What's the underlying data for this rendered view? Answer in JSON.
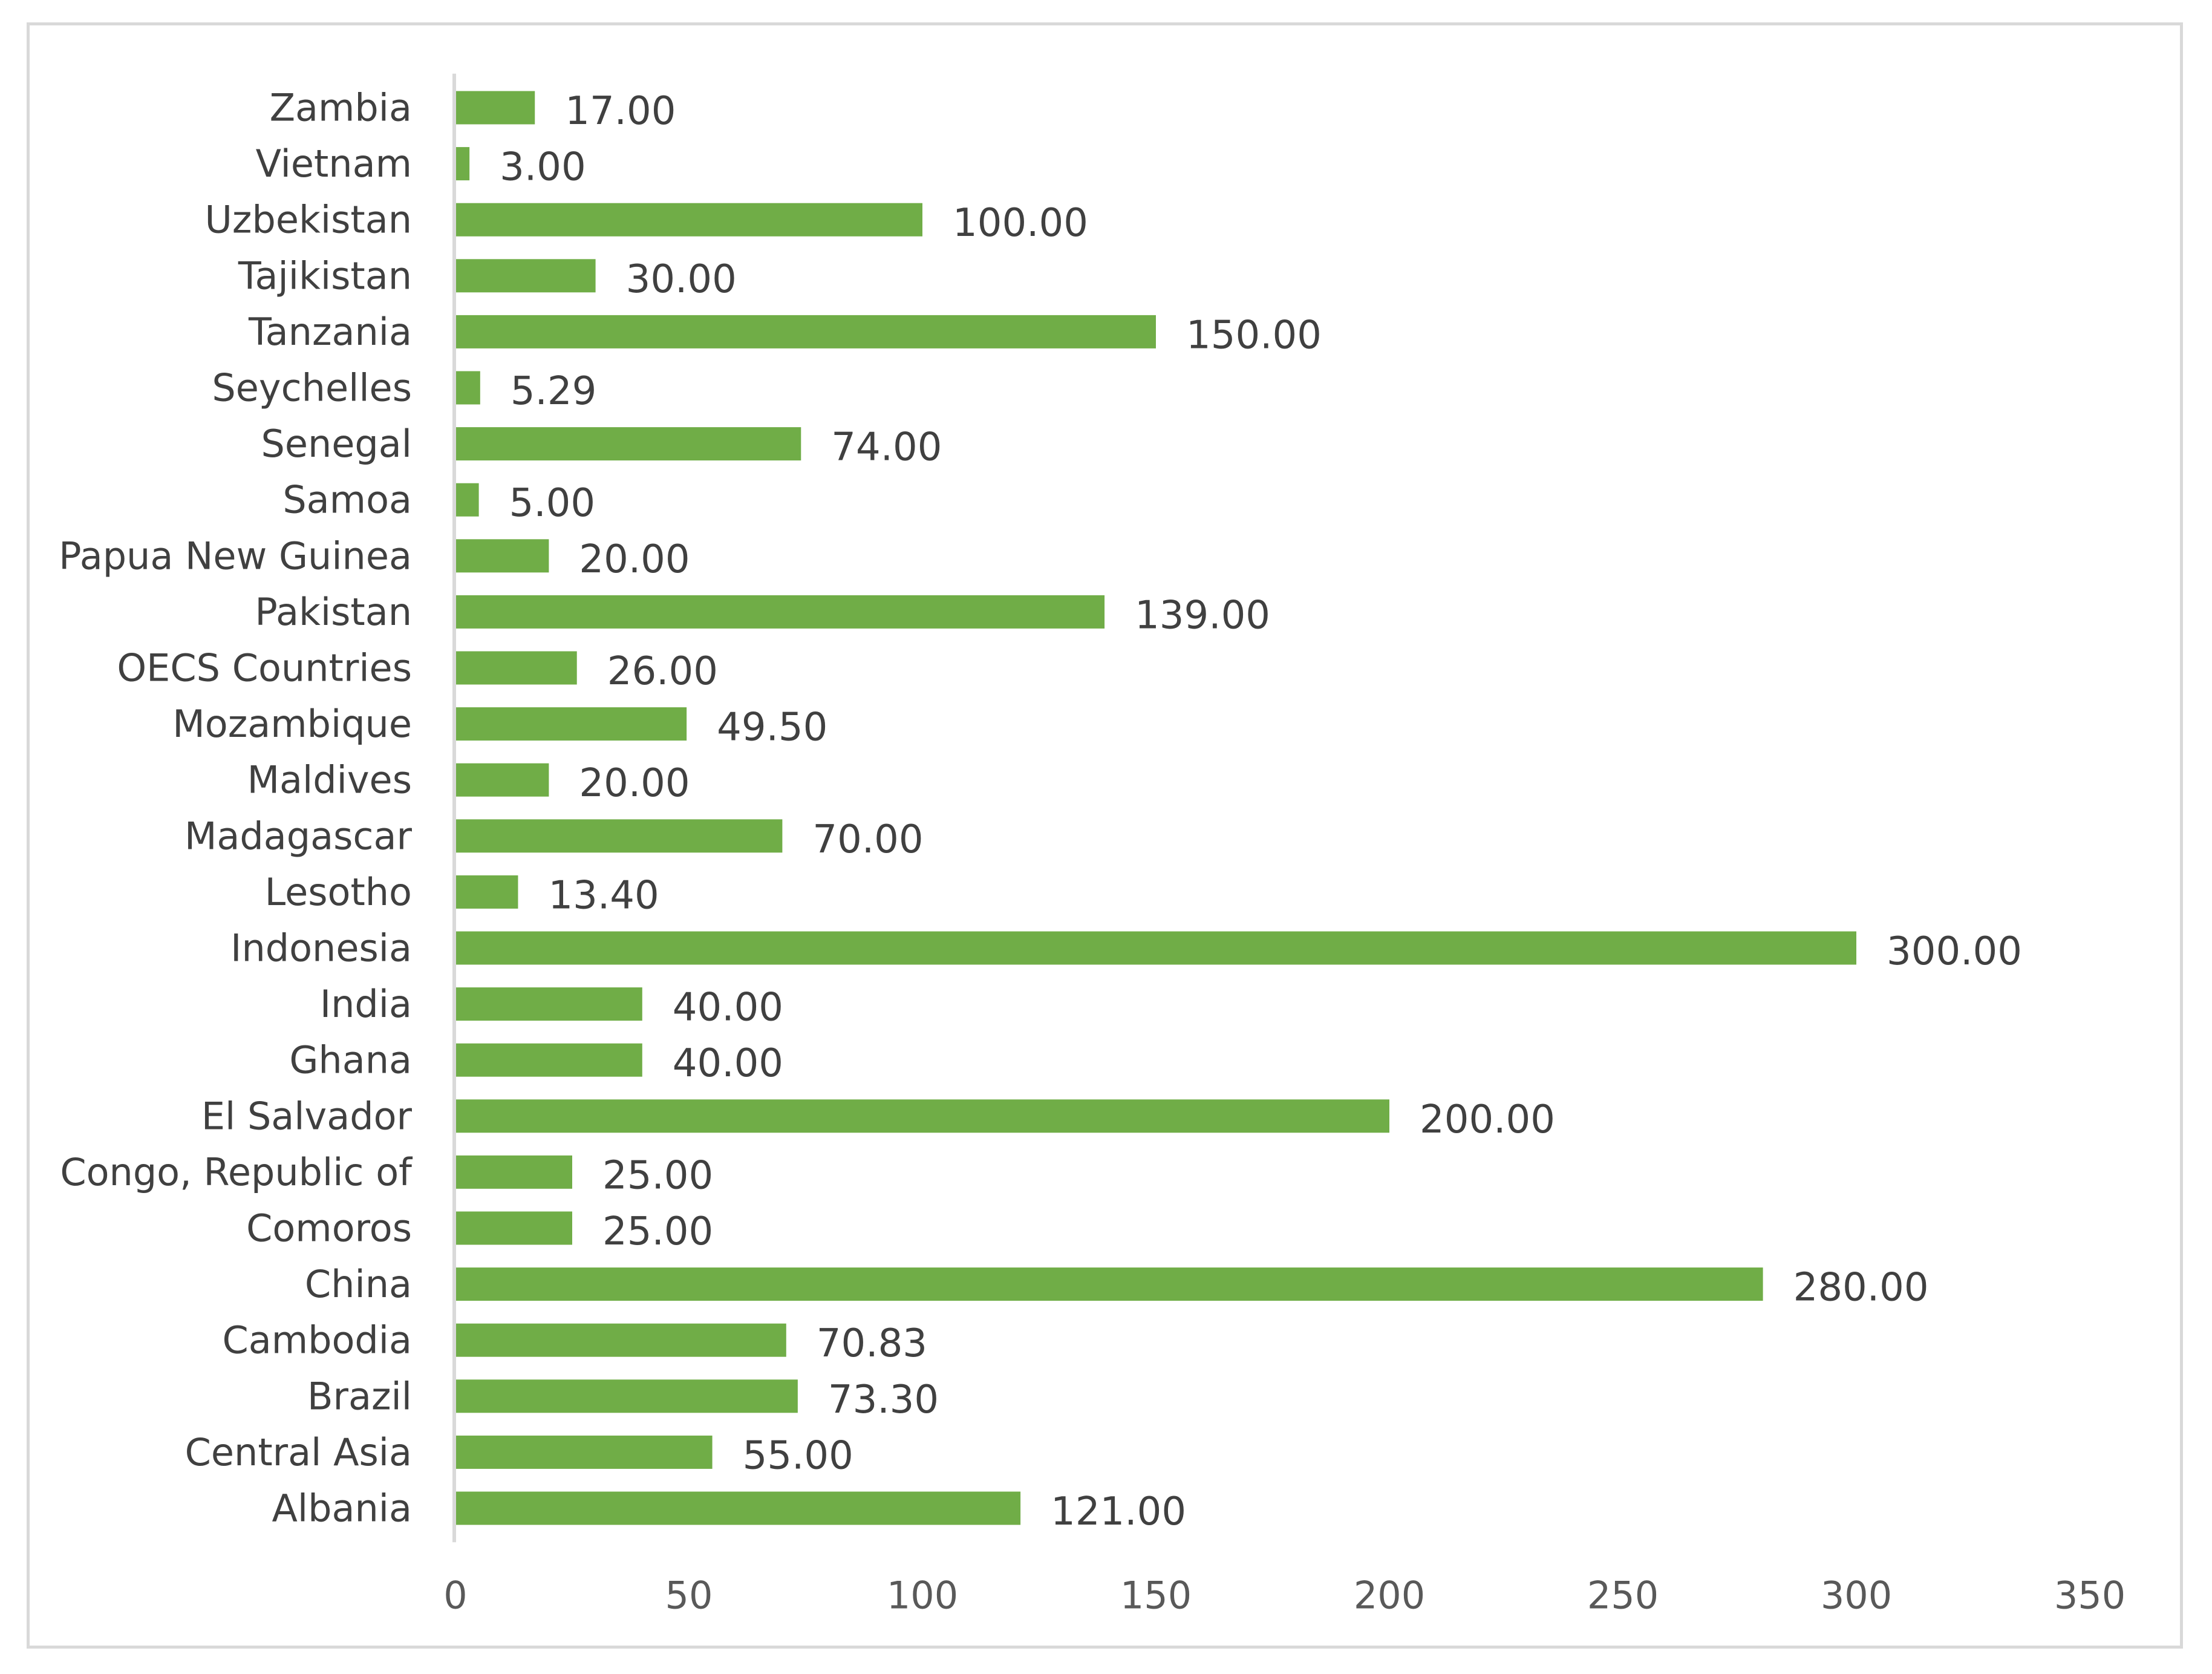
{
  "chart_data": {
    "type": "bar",
    "orientation": "horizontal",
    "title": "",
    "xlabel": "",
    "ylabel": "",
    "categories": [
      "Zambia",
      "Vietnam",
      "Uzbekistan",
      "Tajikistan",
      "Tanzania",
      "Seychelles",
      "Senegal",
      "Samoa",
      "Papua New Guinea",
      "Pakistan",
      "OECS Countries",
      "Mozambique",
      "Maldives",
      "Madagascar",
      "Lesotho",
      "Indonesia",
      "India",
      "Ghana",
      "El Salvador",
      "Congo, Republic of",
      "Comoros",
      "China",
      "Cambodia",
      "Brazil",
      "Central Asia",
      "Albania"
    ],
    "values": [
      17.0,
      3.0,
      100.0,
      30.0,
      150.0,
      5.29,
      74.0,
      5.0,
      20.0,
      139.0,
      26.0,
      49.5,
      20.0,
      70.0,
      13.4,
      300.0,
      40.0,
      40.0,
      200.0,
      25.0,
      25.0,
      280.0,
      70.83,
      73.3,
      55.0,
      121.0
    ],
    "data_labels": [
      "17.00",
      "3.00",
      "100.00",
      "30.00",
      "150.00",
      "5.29",
      "74.00",
      "5.00",
      "20.00",
      "139.00",
      "26.00",
      "49.50",
      "20.00",
      "70.00",
      "13.40",
      "300.00",
      "40.00",
      "40.00",
      "200.00",
      "25.00",
      "25.00",
      "280.00",
      "70.83",
      "73.30",
      "55.00",
      "121.00"
    ],
    "xlim": [
      0,
      350
    ],
    "x_ticks": [
      0,
      50,
      100,
      150,
      200,
      250,
      300,
      350
    ],
    "x_tick_labels": [
      "0",
      "50",
      "100",
      "150",
      "200",
      "250",
      "300",
      "350"
    ],
    "grid": false,
    "legend": "none",
    "bar_color": "#70ad47"
  }
}
